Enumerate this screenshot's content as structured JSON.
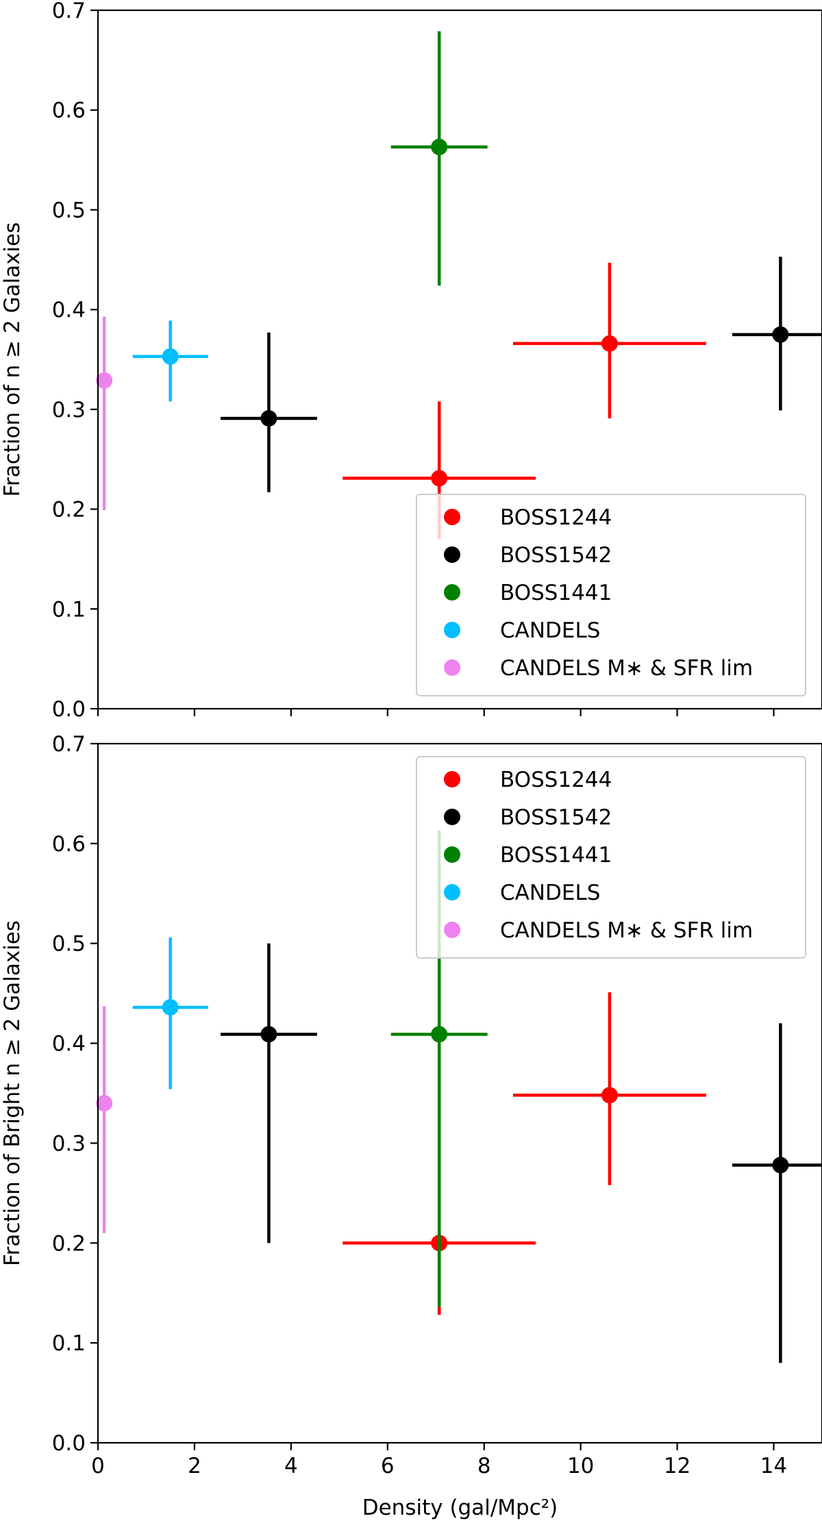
{
  "chart_data": [
    {
      "type": "scatter",
      "ylabel": "Fraction of n ≥ 2 Galaxies",
      "xlabel": "",
      "xlim": [
        0,
        15
      ],
      "ylim": [
        0,
        0.7
      ],
      "xticks": [
        0,
        2,
        4,
        6,
        8,
        10,
        12,
        14
      ],
      "yticks": [
        0.0,
        0.1,
        0.2,
        0.3,
        0.4,
        0.5,
        0.6,
        0.7
      ],
      "show_xtick_labels": false,
      "legend_position": "lower-right",
      "series": [
        {
          "name": "BOSS1244",
          "color": "#ff0000",
          "points": [
            {
              "x": 7.07,
              "y": 0.231,
              "xerr": [
                2.0,
                2.0
              ],
              "yerr": [
                0.061,
                0.077
              ]
            },
            {
              "x": 10.6,
              "y": 0.366,
              "xerr": [
                2.0,
                2.0
              ],
              "yerr": [
                0.075,
                0.081
              ]
            }
          ]
        },
        {
          "name": "BOSS1542",
          "color": "#000000",
          "points": [
            {
              "x": 3.54,
              "y": 0.291,
              "xerr": [
                1.0,
                1.0
              ],
              "yerr": [
                0.074,
                0.086
              ]
            },
            {
              "x": 14.14,
              "y": 0.375,
              "xerr": [
                1.0,
                1.0
              ],
              "yerr": [
                0.076,
                0.078
              ]
            }
          ]
        },
        {
          "name": "BOSS1441",
          "color": "#008000",
          "points": [
            {
              "x": 7.07,
              "y": 0.563,
              "xerr": [
                1.0,
                1.0
              ],
              "yerr": [
                0.139,
                0.116
              ]
            }
          ]
        },
        {
          "name": "CANDELS",
          "color": "#00bfff",
          "points": [
            {
              "x": 1.5,
              "y": 0.353,
              "xerr": [
                0.78,
                0.78
              ],
              "yerr": [
                0.045,
                0.036
              ]
            }
          ]
        },
        {
          "name": "CANDELS M∗ & SFR lim",
          "color": "#ee82ee",
          "points": [
            {
              "x": 0.13,
              "y": 0.329,
              "xerr": [
                0,
                0
              ],
              "yerr": [
                0.13,
                0.064
              ]
            }
          ]
        }
      ]
    },
    {
      "type": "scatter",
      "ylabel": "Fraction of Bright n ≥ 2 Galaxies",
      "xlabel": "Density (gal/Mpc²)",
      "xlim": [
        0,
        15
      ],
      "ylim": [
        0,
        0.7
      ],
      "xticks": [
        0,
        2,
        4,
        6,
        8,
        10,
        12,
        14
      ],
      "yticks": [
        0.0,
        0.1,
        0.2,
        0.3,
        0.4,
        0.5,
        0.6,
        0.7
      ],
      "show_xtick_labels": true,
      "legend_position": "upper-right",
      "series": [
        {
          "name": "BOSS1244",
          "color": "#ff0000",
          "points": [
            {
              "x": 7.07,
              "y": 0.2,
              "xerr": [
                2.0,
                2.0
              ],
              "yerr": [
                0.072,
                0.0
              ]
            },
            {
              "x": 10.6,
              "y": 0.348,
              "xerr": [
                2.0,
                2.0
              ],
              "yerr": [
                0.09,
                0.103
              ]
            }
          ]
        },
        {
          "name": "BOSS1542",
          "color": "#000000",
          "points": [
            {
              "x": 3.54,
              "y": 0.409,
              "xerr": [
                1.0,
                1.0
              ],
              "yerr": [
                0.209,
                0.091
              ]
            },
            {
              "x": 14.14,
              "y": 0.278,
              "xerr": [
                1.0,
                1.0
              ],
              "yerr": [
                0.198,
                0.142
              ]
            }
          ]
        },
        {
          "name": "BOSS1441",
          "color": "#008000",
          "points": [
            {
              "x": 7.07,
              "y": 0.409,
              "xerr": [
                1.0,
                1.0
              ],
              "yerr": [
                0.273,
                0.204
              ]
            }
          ]
        },
        {
          "name": "CANDELS",
          "color": "#00bfff",
          "points": [
            {
              "x": 1.5,
              "y": 0.436,
              "xerr": [
                0.78,
                0.78
              ],
              "yerr": [
                0.082,
                0.07
              ]
            }
          ]
        },
        {
          "name": "CANDELS M∗ & SFR lim",
          "color": "#ee82ee",
          "points": [
            {
              "x": 0.13,
              "y": 0.34,
              "xerr": [
                0,
                0
              ],
              "yerr": [
                0.13,
                0.097
              ]
            }
          ]
        }
      ]
    }
  ]
}
